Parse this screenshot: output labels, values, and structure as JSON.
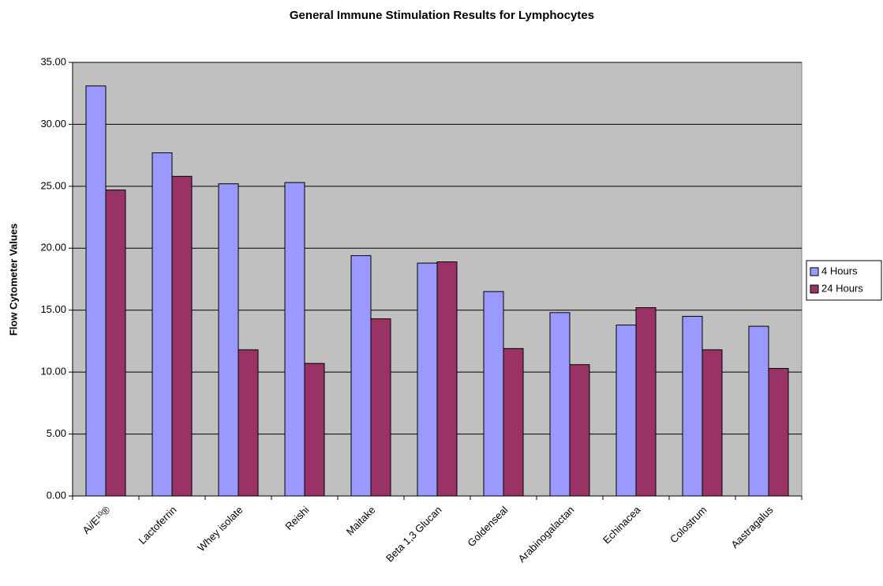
{
  "chart_data": {
    "type": "bar",
    "title": "General Immune Stimulation Results for Lymphocytes",
    "y_label": "Flow Cytometer Values",
    "categories": [
      "Ai/E¹⁰®",
      "Lactoferrin",
      "Whey isolate",
      "Reishi",
      "Maitake",
      "Beta 1,3 Glucan",
      "Goldenseal",
      "Arabinogalactan",
      "Echinacea",
      "Colostrum",
      "Aastragalus"
    ],
    "series": [
      {
        "name": "4 Hours",
        "color": "#9999ff",
        "values": [
          33.1,
          27.7,
          25.2,
          25.3,
          19.4,
          18.8,
          16.5,
          14.8,
          13.8,
          14.5,
          13.7
        ]
      },
      {
        "name": "24 Hours",
        "color": "#993366",
        "values": [
          24.7,
          25.8,
          11.8,
          10.7,
          14.3,
          18.9,
          11.9,
          10.6,
          15.2,
          11.8,
          10.3
        ]
      }
    ],
    "ylim": [
      0,
      35
    ],
    "yticks": [
      {
        "value": 0,
        "label": "0.00"
      },
      {
        "value": 5,
        "label": "5.00"
      },
      {
        "value": 10,
        "label": "10.00"
      },
      {
        "value": 15,
        "label": "15.00"
      },
      {
        "value": 20,
        "label": "20.00"
      },
      {
        "value": 25,
        "label": "25.00"
      },
      {
        "value": 30,
        "label": "30.00"
      },
      {
        "value": 35,
        "label": "35.00"
      }
    ],
    "grid": true,
    "legend": "right",
    "plot_background": "#c0c0c0"
  }
}
